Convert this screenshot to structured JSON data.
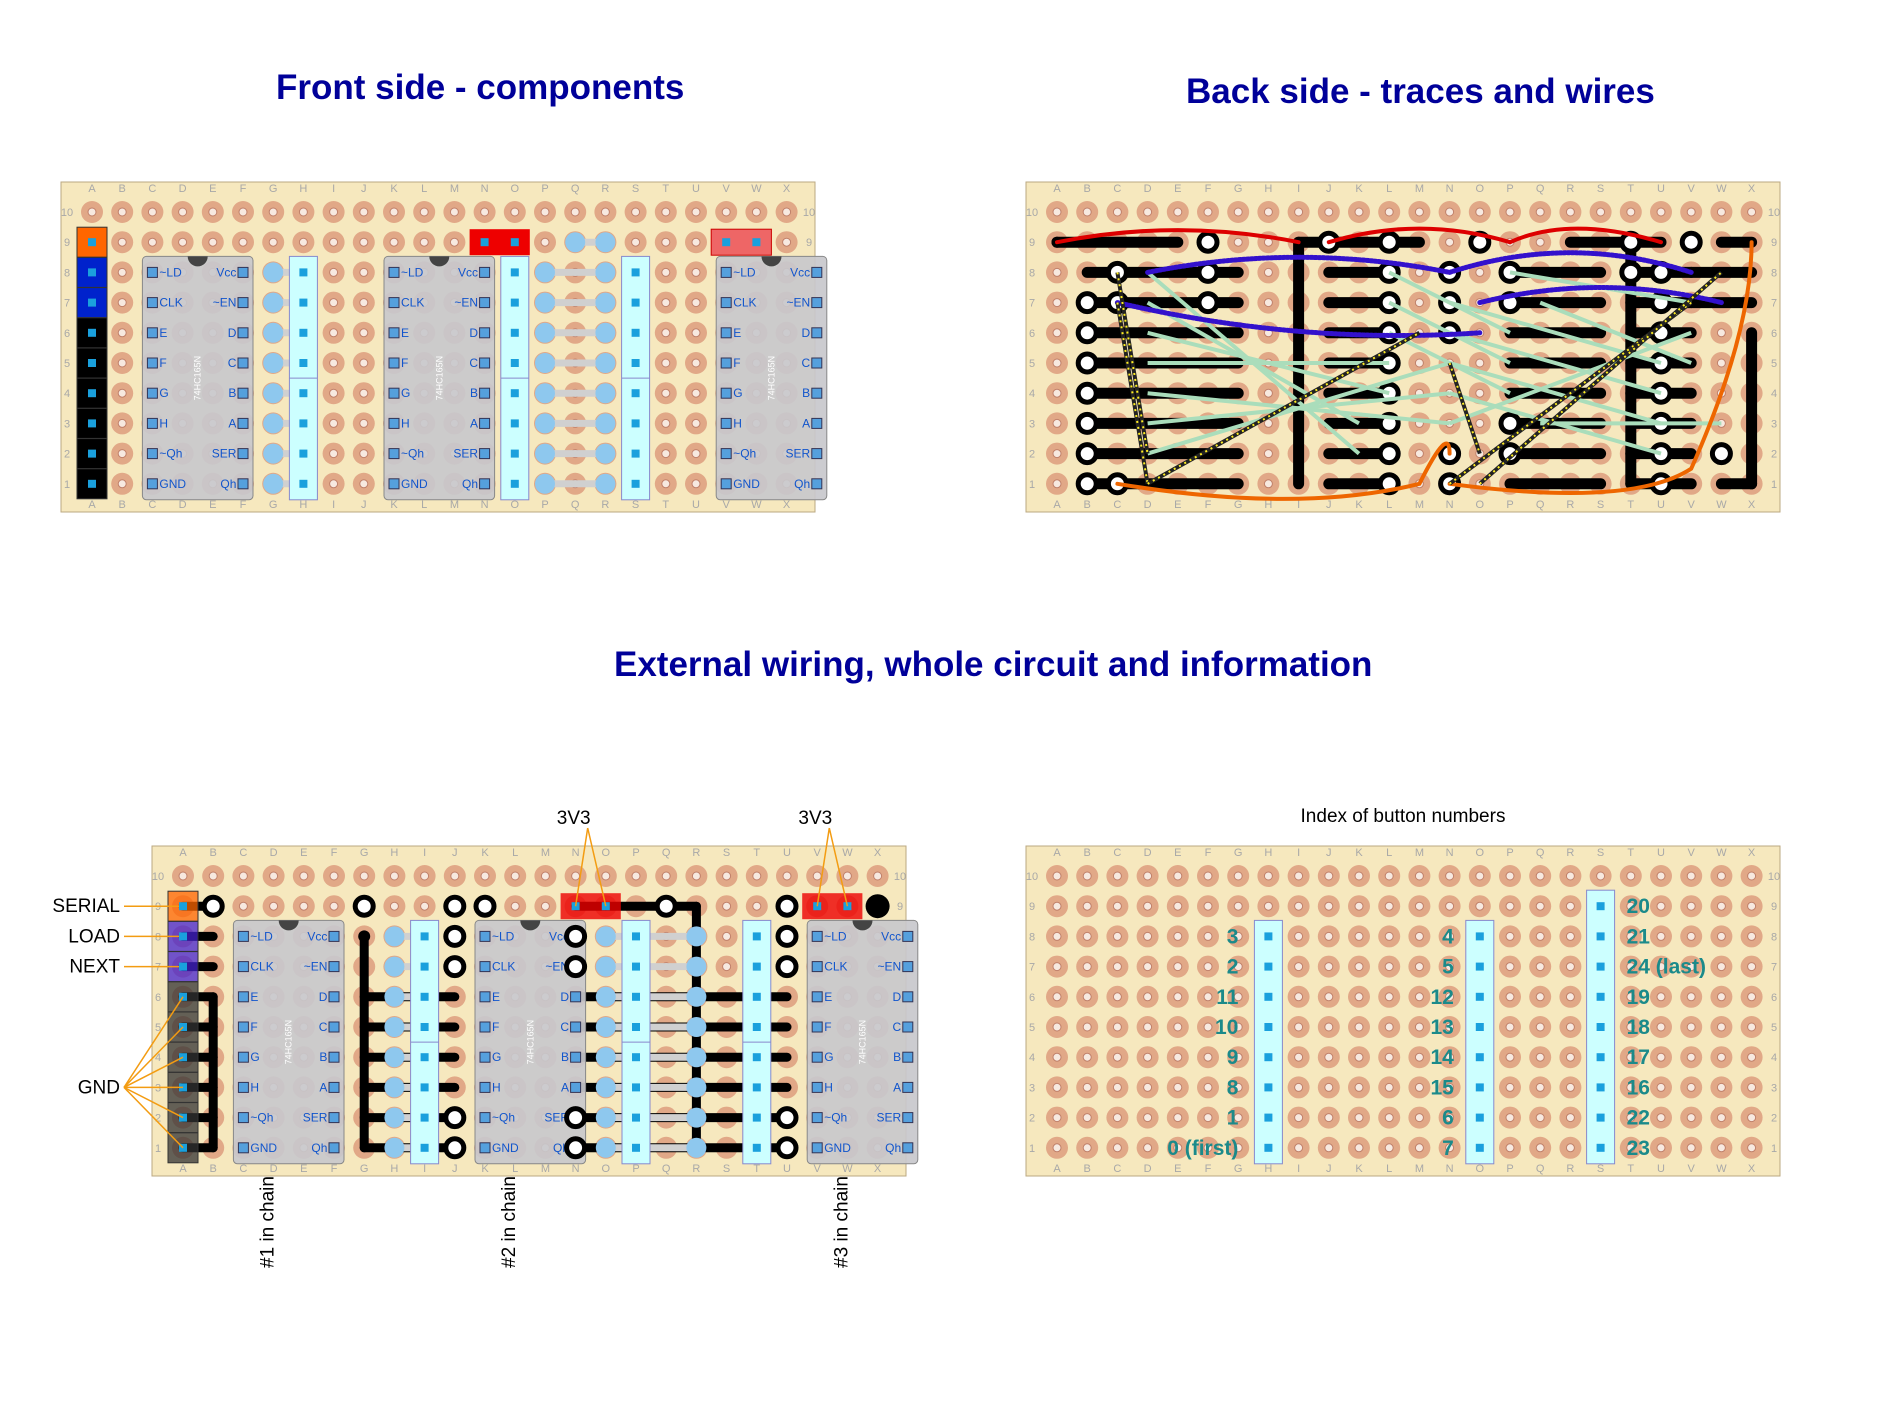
{
  "titles": {
    "front": "Front side - components",
    "back": "Back side - traces and wires",
    "external": "External wiring, whole circuit and information",
    "index": "Index of button numbers"
  },
  "board": {
    "columns": [
      "A",
      "B",
      "C",
      "D",
      "E",
      "F",
      "G",
      "H",
      "I",
      "J",
      "K",
      "L",
      "M",
      "N",
      "O",
      "P",
      "Q",
      "R",
      "S",
      "T",
      "U",
      "V",
      "W",
      "X"
    ],
    "rows": [
      "10",
      "9",
      "8",
      "7",
      "6",
      "5",
      "4",
      "3",
      "2",
      "1"
    ]
  },
  "chip": {
    "part": "74HC165N",
    "left_pins": [
      "~LD",
      "CLK",
      "E",
      "F",
      "G",
      "H",
      "~Qh",
      "GND"
    ],
    "right_pins": [
      "Vcc",
      "~EN",
      "D",
      "C",
      "B",
      "A",
      "SER",
      "Qh"
    ]
  },
  "external_labels": {
    "left": [
      "SERIAL",
      "LOAD",
      "NEXT",
      "GND"
    ],
    "top": [
      "3V3",
      "3V3"
    ],
    "chain": [
      "#1 in chain",
      "#2 in chain",
      "#3 in chain"
    ]
  },
  "button_index": {
    "group1": [
      "3",
      "2",
      "11",
      "10",
      "9",
      "8",
      "1",
      "0 (first)"
    ],
    "group2": [
      "4",
      "5",
      "12",
      "13",
      "14",
      "15",
      "6",
      "7"
    ],
    "group3": [
      "20",
      "21",
      "24 (last)",
      "19",
      "18",
      "17",
      "16",
      "22",
      "23"
    ]
  },
  "colors": {
    "board_bg": "#f6e8be",
    "pad": "#e1a887",
    "track": "#000000",
    "text": "#000099",
    "label_teal": "#1b8a8a",
    "wire_red": "#dd0000",
    "wire_purple": "#3311cc",
    "wire_orange": "#ee6600",
    "wire_green": "#aaddbb",
    "button_strip": "#ccffff",
    "chip_body": "#c8c8cc",
    "chip_text": "#1155cc"
  }
}
